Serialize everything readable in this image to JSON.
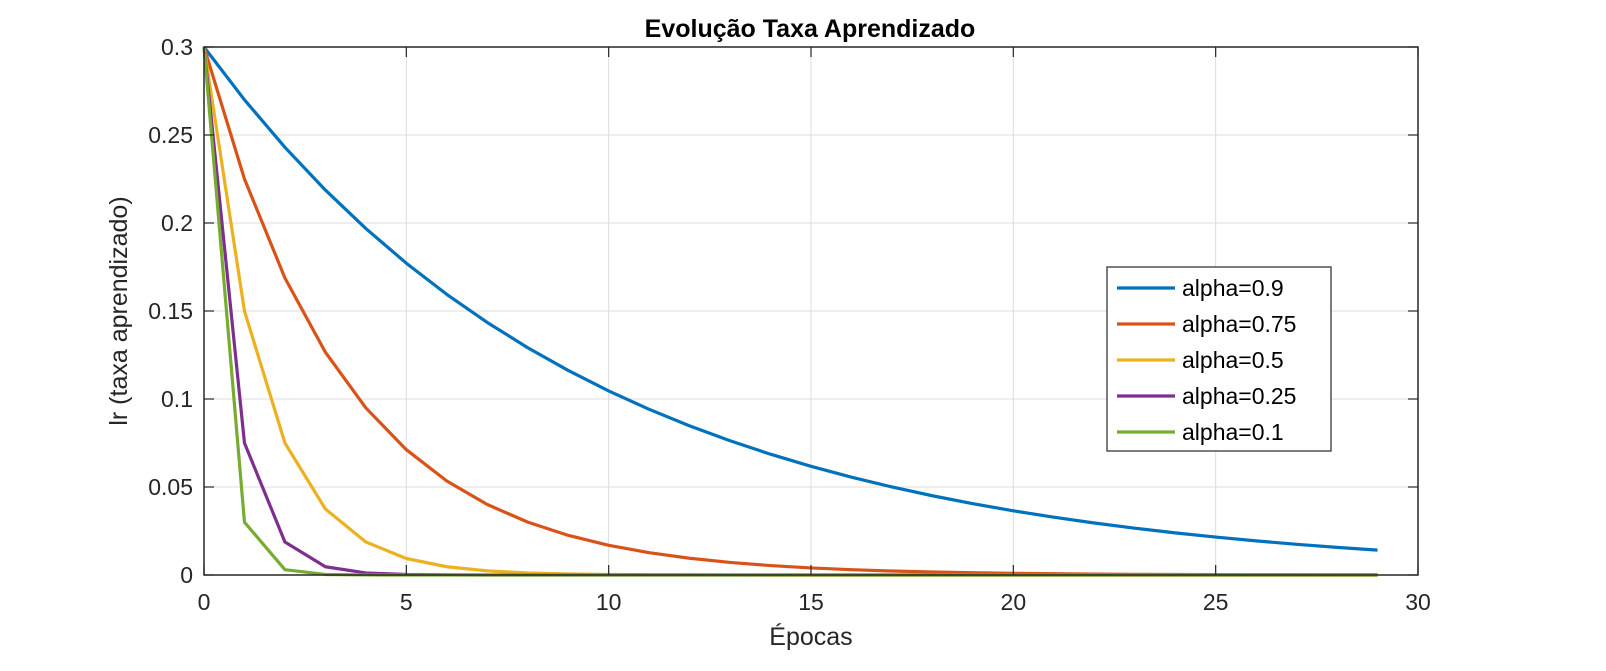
{
  "chart_data": {
    "type": "line",
    "title": "Evolução Taxa Aprendizado",
    "xlabel": "Épocas",
    "ylabel": "lr (taxa aprendizado)",
    "xlim": [
      0,
      30
    ],
    "ylim": [
      0,
      0.3
    ],
    "xticks": [
      "0",
      "5",
      "10",
      "15",
      "20",
      "25",
      "30"
    ],
    "yticks": [
      "0",
      "0.05",
      "0.1",
      "0.15",
      "0.2",
      "0.25",
      "0.3"
    ],
    "grid": true,
    "legend_position": "right",
    "x": [
      0,
      1,
      2,
      3,
      4,
      5,
      6,
      7,
      8,
      9,
      10,
      11,
      12,
      13,
      14,
      15,
      16,
      17,
      18,
      19,
      20,
      21,
      22,
      23,
      24,
      25,
      26,
      27,
      28,
      29
    ],
    "series": [
      {
        "name": "alpha=0.9",
        "color": "#0072BD",
        "alpha": 0.9
      },
      {
        "name": "alpha=0.75",
        "color": "#D95319",
        "alpha": 0.75
      },
      {
        "name": "alpha=0.5",
        "color": "#EDB120",
        "alpha": 0.5
      },
      {
        "name": "alpha=0.25",
        "color": "#7E2F8E",
        "alpha": 0.25
      },
      {
        "name": "alpha=0.1",
        "color": "#77AC30",
        "alpha": 0.1
      }
    ],
    "initial_value": 0.3
  }
}
